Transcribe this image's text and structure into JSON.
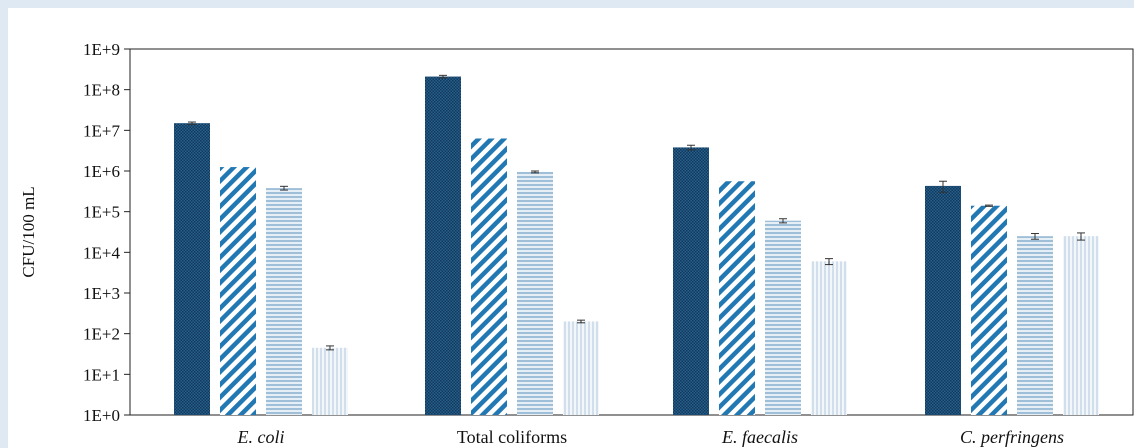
{
  "chart_data": {
    "type": "bar",
    "title": "",
    "xlabel": "",
    "ylabel": "CFU/100 mL",
    "yscale": "log",
    "ylim": [
      1,
      1000000000
    ],
    "yticks": [
      "1E+0",
      "1E+1",
      "1E+2",
      "1E+3",
      "1E+4",
      "1E+5",
      "1E+6",
      "1E+7",
      "1E+8",
      "1E+9"
    ],
    "grid": false,
    "legend": "none",
    "categories": [
      "E. coli",
      "Total coliforms",
      "E. faecalis",
      "C. perfringens"
    ],
    "italic_categories": [
      true,
      false,
      true,
      true
    ],
    "series": [
      {
        "values": [
          15000000,
          210000000,
          3800000,
          430000
        ],
        "errors": [
          1000000,
          15000000,
          500000,
          130000
        ],
        "color": "#1e4f78",
        "pattern": "dots-dark"
      },
      {
        "values": [
          1250000,
          6300000,
          560000,
          140000
        ],
        "errors": [
          0,
          0,
          0,
          5000
        ],
        "color": "#2278b3",
        "pattern": "diagonal"
      },
      {
        "values": [
          380000,
          950000,
          60000,
          25000
        ],
        "errors": [
          40000,
          50000,
          7000,
          4000
        ],
        "color": "#a9c6dc",
        "pattern": "horizontal"
      },
      {
        "values": [
          45,
          200,
          6000,
          25000
        ],
        "errors": [
          5,
          15,
          1000,
          5000
        ],
        "color": "#d6e3ee",
        "pattern": "vertical"
      }
    ]
  }
}
